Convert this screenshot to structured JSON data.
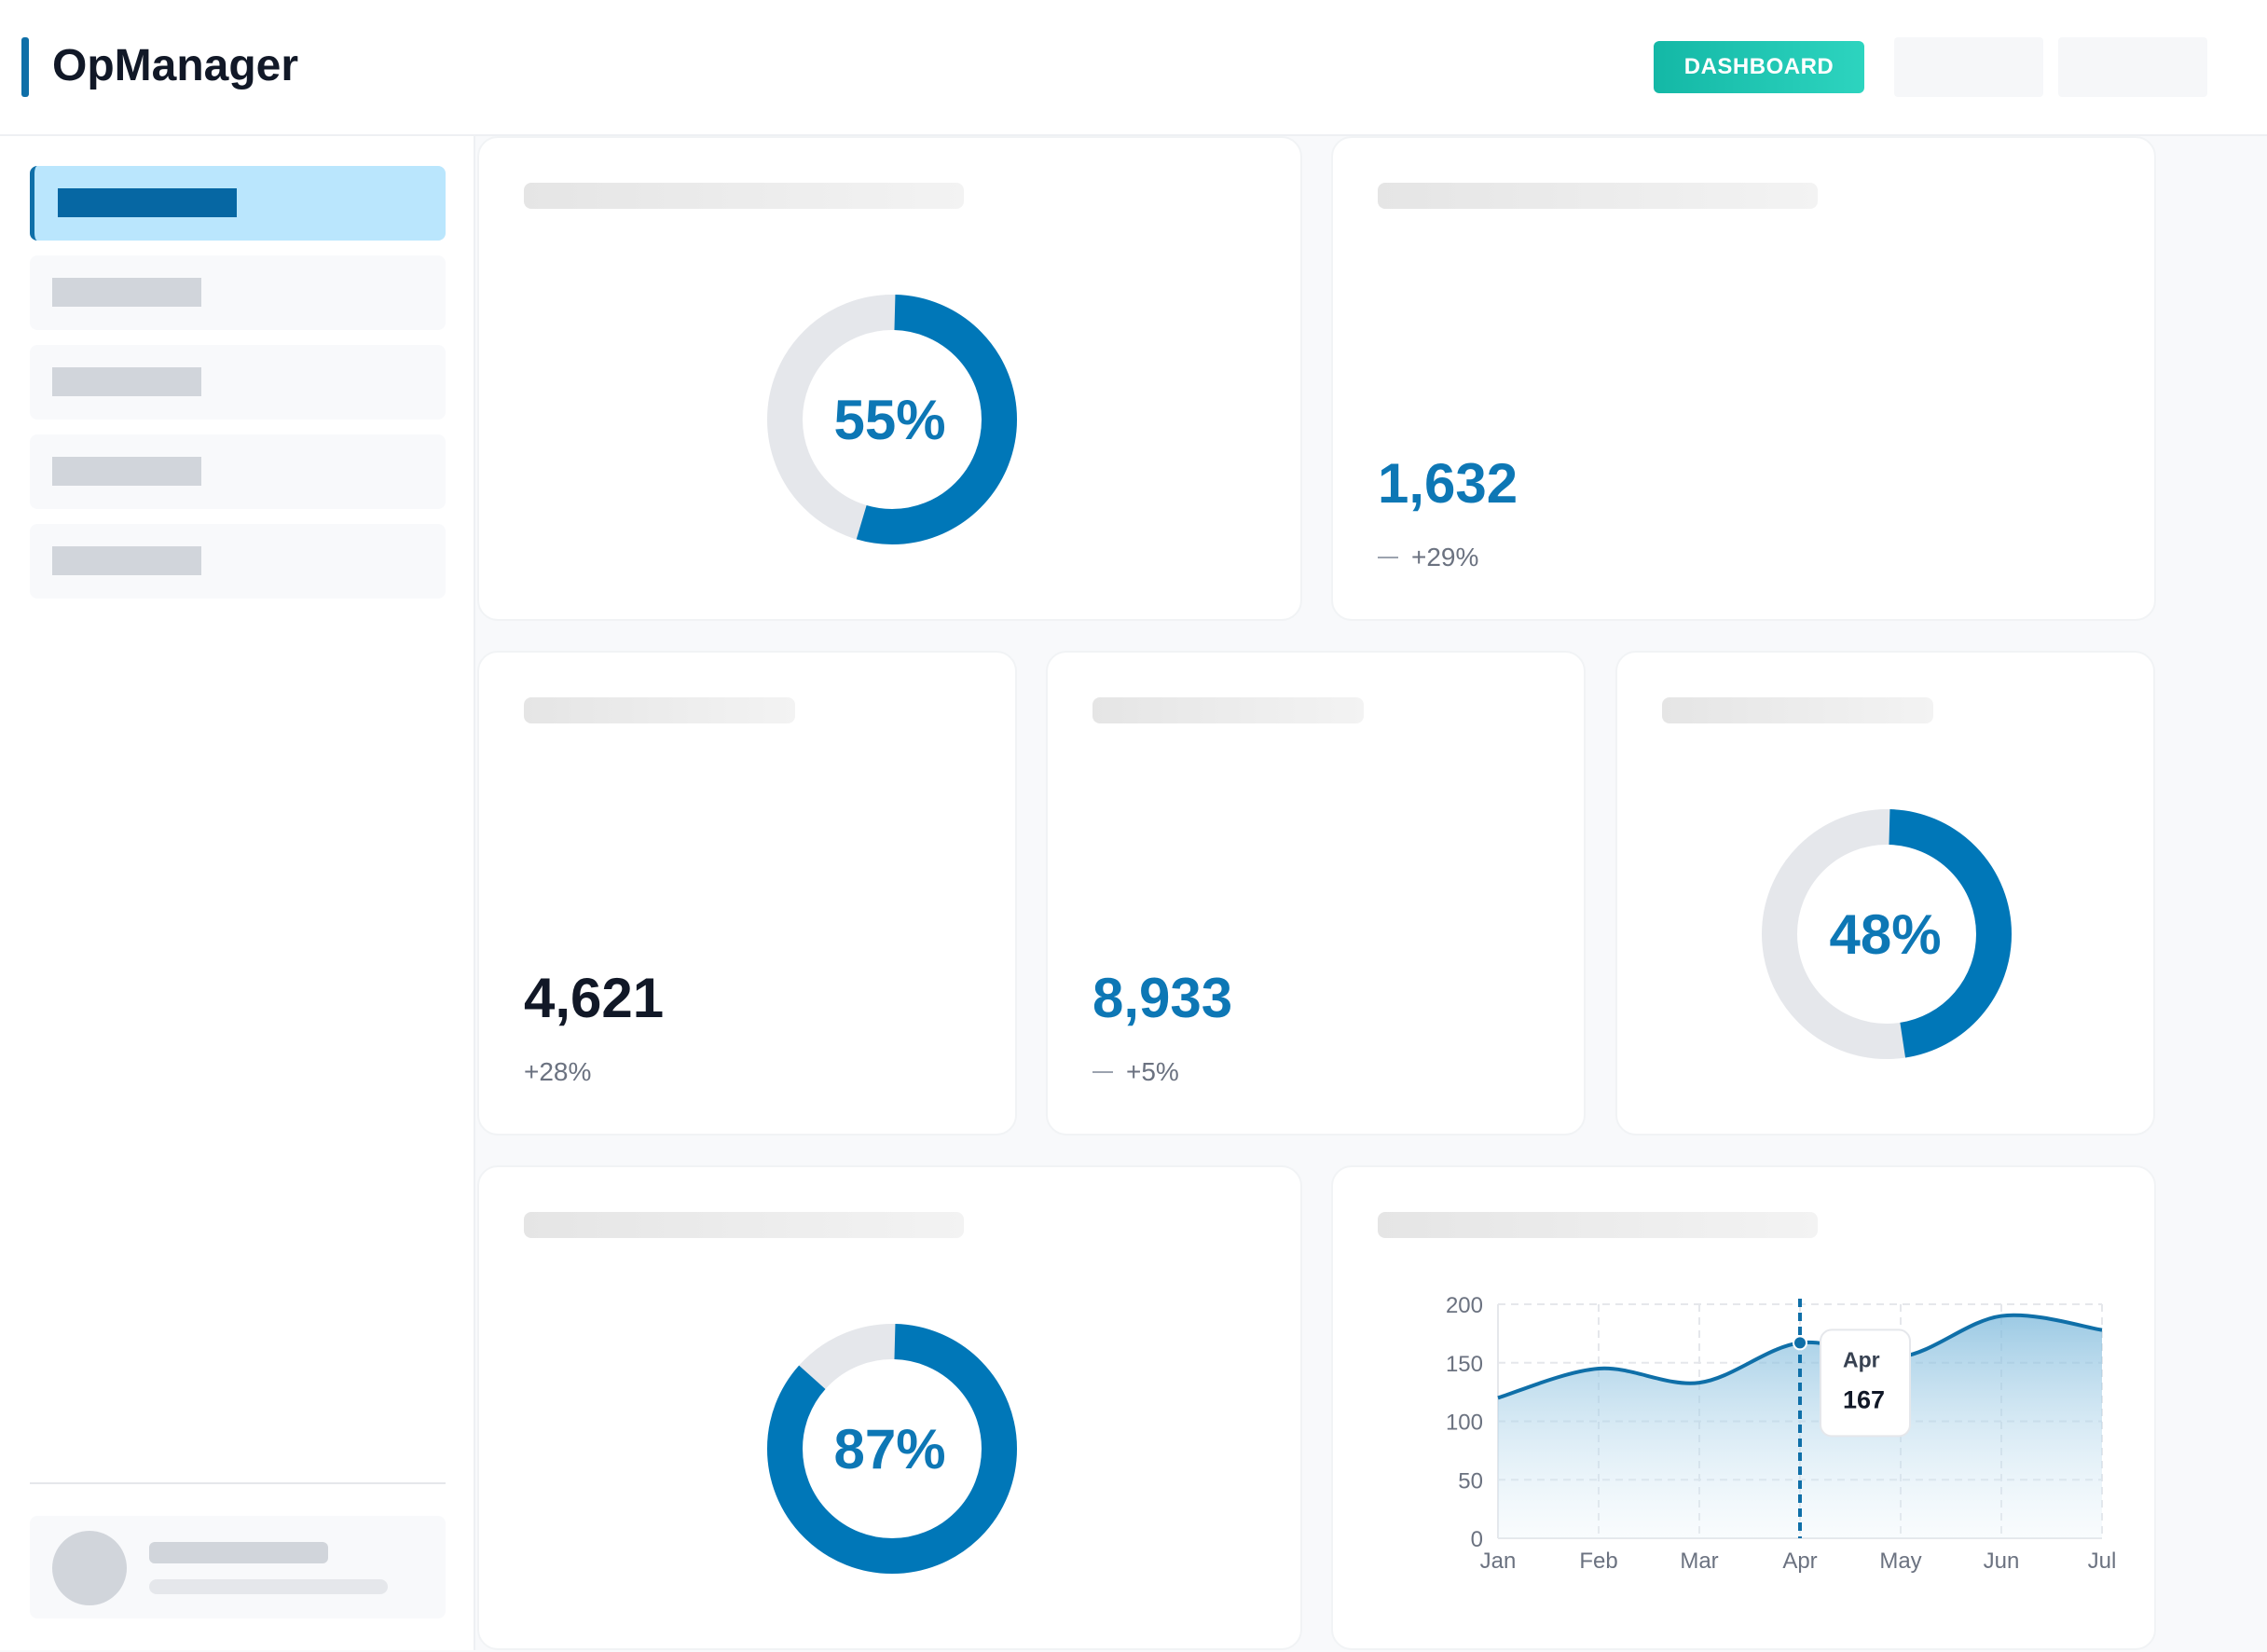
{
  "header": {
    "app_title": "OpManager",
    "dashboard_button": "DASHBOARD"
  },
  "colors": {
    "accent": "#0f6fa8",
    "teal": "#14b8a6",
    "donut_track": "#e5e7eb"
  },
  "cards": {
    "donut_a": {
      "percent_label": "55%",
      "percent": 55
    },
    "metric_a": {
      "value": "1,632",
      "change": "+29%",
      "icon": "dash-icon"
    },
    "metric_b": {
      "value": "4,621",
      "change": "+28%"
    },
    "metric_c": {
      "value": "8,933",
      "change": "+5%",
      "icon": "dash-icon"
    },
    "donut_b": {
      "percent_label": "48%",
      "percent": 48
    },
    "donut_c": {
      "percent_label": "87%",
      "percent": 87
    }
  },
  "chart_data": {
    "type": "area",
    "categories": [
      "Jan",
      "Feb",
      "Mar",
      "Apr",
      "May",
      "Jun",
      "Jul"
    ],
    "series": [
      {
        "name": "",
        "values": [
          120,
          145,
          133,
          167,
          155,
          190,
          178
        ]
      }
    ],
    "ylim": [
      0,
      200
    ],
    "yticks": [
      0,
      50,
      100,
      150,
      200
    ],
    "tooltip": {
      "label": "Apr",
      "value": "167"
    },
    "grid": true,
    "title": "",
    "xlabel": "",
    "ylabel": ""
  }
}
